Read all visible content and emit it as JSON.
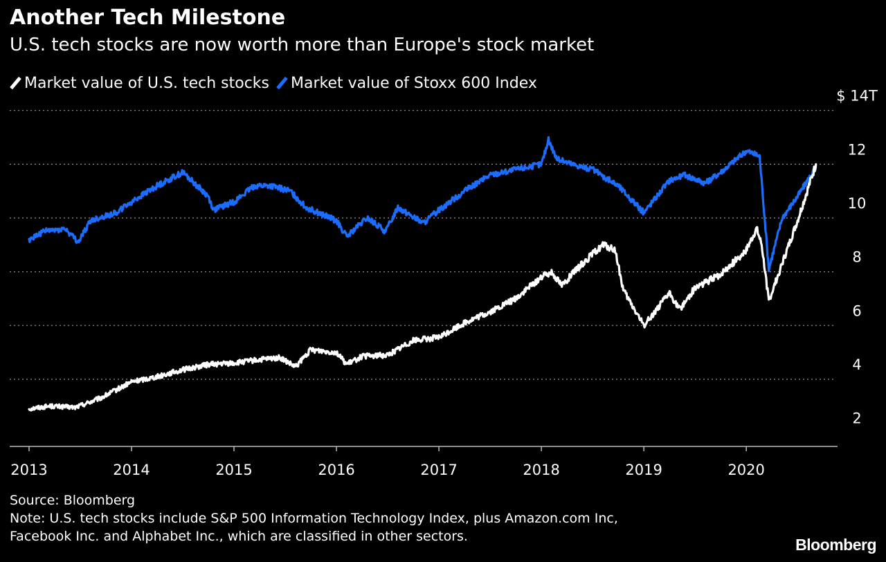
{
  "chart_data": {
    "type": "line",
    "title": "Another Tech Milestone",
    "subtitle": "U.S. tech stocks are now worth more than Europe's stock market",
    "yunit_label": "$ 14T",
    "ylim": [
      1.5,
      14.3
    ],
    "xlim": [
      2013.0,
      2020.85
    ],
    "y_ticks": [
      {
        "value": 14,
        "label": "$ 14T"
      },
      {
        "value": 12,
        "label": "12"
      },
      {
        "value": 10,
        "label": "10"
      },
      {
        "value": 8,
        "label": "8"
      },
      {
        "value": 6,
        "label": "6"
      },
      {
        "value": 4,
        "label": "4"
      },
      {
        "value": 2,
        "label": "2"
      }
    ],
    "x_ticks": [
      {
        "value": 2013,
        "label": "2013"
      },
      {
        "value": 2014,
        "label": "2014"
      },
      {
        "value": 2015,
        "label": "2015"
      },
      {
        "value": 2016,
        "label": "2016"
      },
      {
        "value": 2017,
        "label": "2017"
      },
      {
        "value": 2018,
        "label": "2018"
      },
      {
        "value": 2019,
        "label": "2019"
      },
      {
        "value": 2020,
        "label": "2020"
      }
    ],
    "grid": true,
    "legend_position": "top-left",
    "series": [
      {
        "name": "Market value of U.S. tech stocks",
        "color": "#ffffff",
        "x": [
          2013.0,
          2013.2,
          2013.45,
          2013.7,
          2014.0,
          2014.25,
          2014.5,
          2014.75,
          2015.0,
          2015.2,
          2015.45,
          2015.6,
          2015.75,
          2016.0,
          2016.1,
          2016.25,
          2016.5,
          2016.75,
          2017.0,
          2017.25,
          2017.5,
          2017.75,
          2018.0,
          2018.1,
          2018.2,
          2018.4,
          2018.6,
          2018.72,
          2018.8,
          2019.0,
          2019.25,
          2019.35,
          2019.5,
          2019.75,
          2020.0,
          2020.1,
          2020.15,
          2020.22,
          2020.35,
          2020.5,
          2020.68
        ],
        "y": [
          2.9,
          3.0,
          2.95,
          3.3,
          3.9,
          4.1,
          4.35,
          4.55,
          4.6,
          4.7,
          4.8,
          4.45,
          5.1,
          5.0,
          4.55,
          4.85,
          4.9,
          5.45,
          5.55,
          6.1,
          6.5,
          7.0,
          7.8,
          8.0,
          7.5,
          8.3,
          9.0,
          8.8,
          7.3,
          6.0,
          7.2,
          6.6,
          7.4,
          7.9,
          8.8,
          9.6,
          9.0,
          6.9,
          8.3,
          9.9,
          12.0
        ]
      },
      {
        "name": "Market value of Stoxx 600 Index",
        "color": "#1a6dff",
        "x": [
          2013.0,
          2013.15,
          2013.35,
          2013.48,
          2013.6,
          2013.85,
          2014.0,
          2014.25,
          2014.5,
          2014.75,
          2014.8,
          2015.0,
          2015.2,
          2015.35,
          2015.55,
          2015.7,
          2016.0,
          2016.1,
          2016.3,
          2016.48,
          2016.6,
          2016.85,
          2017.0,
          2017.25,
          2017.5,
          2018.0,
          2018.07,
          2018.15,
          2018.3,
          2018.5,
          2018.75,
          2019.0,
          2019.25,
          2019.4,
          2019.6,
          2019.75,
          2020.0,
          2020.13,
          2020.22,
          2020.35,
          2020.5,
          2020.68
        ],
        "y": [
          9.2,
          9.5,
          9.6,
          9.1,
          9.9,
          10.2,
          10.6,
          11.2,
          11.7,
          10.8,
          10.3,
          10.6,
          11.2,
          11.2,
          11.0,
          10.4,
          9.9,
          9.3,
          10.0,
          9.5,
          10.4,
          9.8,
          10.3,
          11.0,
          11.6,
          12.0,
          12.9,
          12.2,
          12.0,
          11.8,
          11.2,
          10.2,
          11.4,
          11.6,
          11.3,
          11.7,
          12.5,
          12.3,
          8.1,
          10.0,
          10.8,
          11.9
        ]
      }
    ]
  },
  "legend": {
    "items": [
      {
        "label": "Market value of U.S. tech stocks",
        "color": "#ffffff"
      },
      {
        "label": "Market value of Stoxx 600 Index",
        "color": "#1a6dff"
      }
    ]
  },
  "footer": {
    "source": "Source: Bloomberg",
    "note_line1": "Note: U.S. tech stocks include S&P 500 Information Technology Index, plus Amazon.com Inc,",
    "note_line2": "Facebook Inc. and Alphabet Inc., which are classified in other sectors."
  },
  "brand": "Bloomberg"
}
